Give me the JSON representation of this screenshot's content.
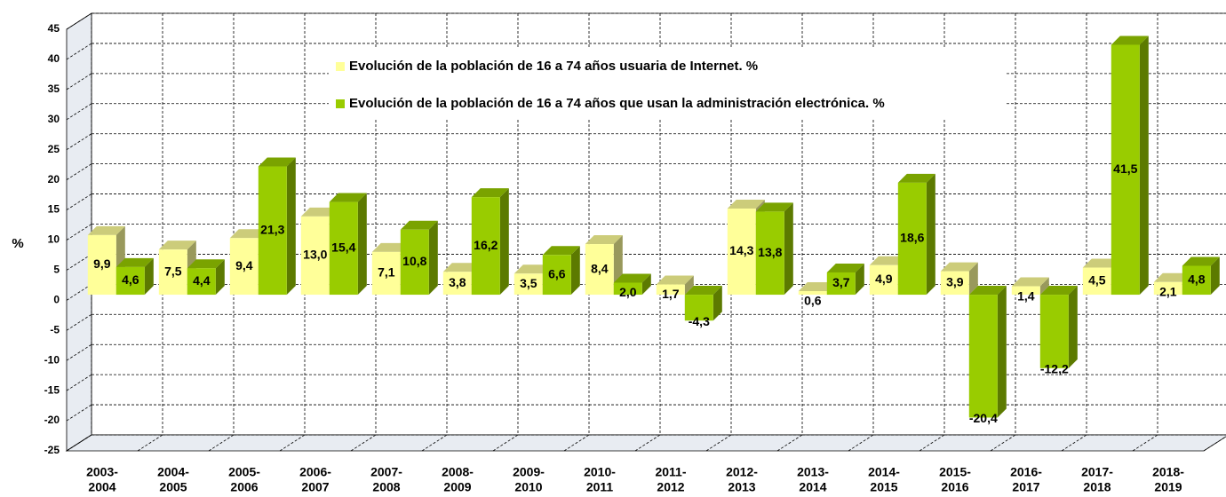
{
  "chart_data": {
    "type": "bar3d",
    "y_label": "%",
    "categories": [
      [
        "2003-",
        "2004"
      ],
      [
        "2004-",
        "2005"
      ],
      [
        "2005-",
        "2006"
      ],
      [
        "2006-",
        "2007"
      ],
      [
        "2007-",
        "2008"
      ],
      [
        "2008-",
        "2009"
      ],
      [
        "2009-",
        "2010"
      ],
      [
        "2010-",
        "2011"
      ],
      [
        "2011-",
        "2012"
      ],
      [
        "2012-",
        "2013"
      ],
      [
        "2013-",
        "2014"
      ],
      [
        "2014-",
        "2015"
      ],
      [
        "2015-",
        "2016"
      ],
      [
        "2016-",
        "2017"
      ],
      [
        "2017-",
        "2018"
      ],
      [
        "2018-",
        "2019"
      ]
    ],
    "series": [
      {
        "name": "Evolución de la población de 16 a 74 años usuaria de Internet. %",
        "color": "#ffff99",
        "values": [
          9.9,
          7.5,
          9.4,
          13.0,
          7.1,
          3.8,
          3.5,
          8.4,
          1.7,
          14.3,
          0.6,
          4.9,
          3.9,
          1.4,
          4.5,
          2.1
        ],
        "value_labels": [
          "9,9",
          "7,5",
          "9,4",
          "13,0",
          "7,1",
          "3,8",
          "3,5",
          "8,4",
          "1,7",
          "14,3",
          "0,6",
          "4,9",
          "3,9",
          "1,4",
          "4,5",
          "2,1"
        ]
      },
      {
        "name": "Evolución de la población de 16 a 74 años que usan la administración electrónica. %",
        "color": "#99cc00",
        "values": [
          4.6,
          4.4,
          21.3,
          15.4,
          10.8,
          16.2,
          6.6,
          2.0,
          -4.3,
          13.8,
          3.7,
          18.6,
          -20.4,
          -12.2,
          41.5,
          4.8
        ],
        "value_labels": [
          "4,6",
          "4,4",
          "21,3",
          "15,4",
          "10,8",
          "16,2",
          "6,6",
          "2,0",
          "-4,3",
          "13,8",
          "3,7",
          "18,6",
          "-20,4",
          "-12,2",
          "41,5",
          "4,8"
        ]
      }
    ],
    "ylim": [
      -25,
      45
    ],
    "yticks": [
      -25,
      -20,
      -15,
      -10,
      -5,
      0,
      5,
      10,
      15,
      20,
      25,
      30,
      35,
      40,
      45
    ],
    "grid": true
  }
}
